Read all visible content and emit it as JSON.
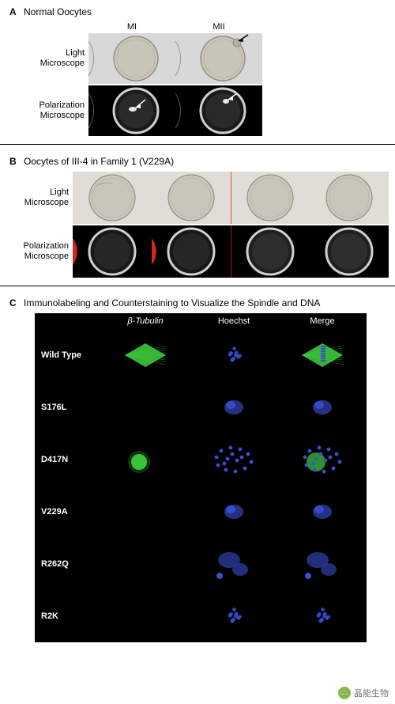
{
  "panelA": {
    "letter": "A",
    "title": "Normal Oocytes",
    "col_labels": [
      "MI",
      "MII"
    ],
    "row_labels": [
      "Light\nMicroscope",
      "Polarization\nMicroscope"
    ],
    "label_fontsize": 11,
    "lm_bg": "#d8d8d8",
    "oocyte_fill": "#c8c4b8",
    "oocyte_stroke": "#8a8478",
    "pol_bg": "#000000",
    "pol_ring_outer": "#cfcfcf",
    "pol_ring_inner": "#3a3a3a",
    "pol_spindle": "#ffffff",
    "arrow_color": "#000000",
    "arrow_white": "#ffffff"
  },
  "panelB": {
    "letter": "B",
    "title": "Oocytes of III-4 in Family 1 (V229A)",
    "row_labels": [
      "Light\nMicroscope",
      "Polarization\nMicroscope"
    ],
    "n_cols": 4,
    "lm_bg": "#e0ddd6",
    "oocyte_fill": "#c9c5ba",
    "oocyte_stroke": "#8a8478",
    "pol_bg": "#000000",
    "pol_ring": "#d0d0d0",
    "red_wedge": "#d9241f",
    "sep_color": "#d9241f"
  },
  "panelC": {
    "letter": "C",
    "title": "Immunolabeling and Counterstaining to Visualize the Spindle and DNA",
    "col_labels": [
      "β-Tubulin",
      "Hoechst",
      "Merge"
    ],
    "rows": [
      {
        "name": "Wild Type",
        "tubulin": "spindle",
        "hoechst": "cluster",
        "merge": "spindle+dna"
      },
      {
        "name": "S176L",
        "tubulin": "none",
        "hoechst": "blob",
        "merge": "blob"
      },
      {
        "name": "D417N",
        "tubulin": "ball",
        "hoechst": "scatter",
        "merge": "ball+scatter"
      },
      {
        "name": "V229A",
        "tubulin": "none",
        "hoechst": "blob",
        "merge": "blob"
      },
      {
        "name": "R262Q",
        "tubulin": "none",
        "hoechst": "clumps",
        "merge": "clumps"
      },
      {
        "name": "R2K",
        "tubulin": "none",
        "hoechst": "cluster",
        "merge": "cluster"
      }
    ],
    "bg": "#000000",
    "green": "#3fd13f",
    "blue": "#3a4fd1",
    "blue_dim": "#2a3a99",
    "label_color": "#ffffff",
    "label_fontsize": 11
  },
  "watermark": {
    "icon_bg": "#7cb342",
    "icon_text": "∴",
    "text": "晶能生物"
  }
}
